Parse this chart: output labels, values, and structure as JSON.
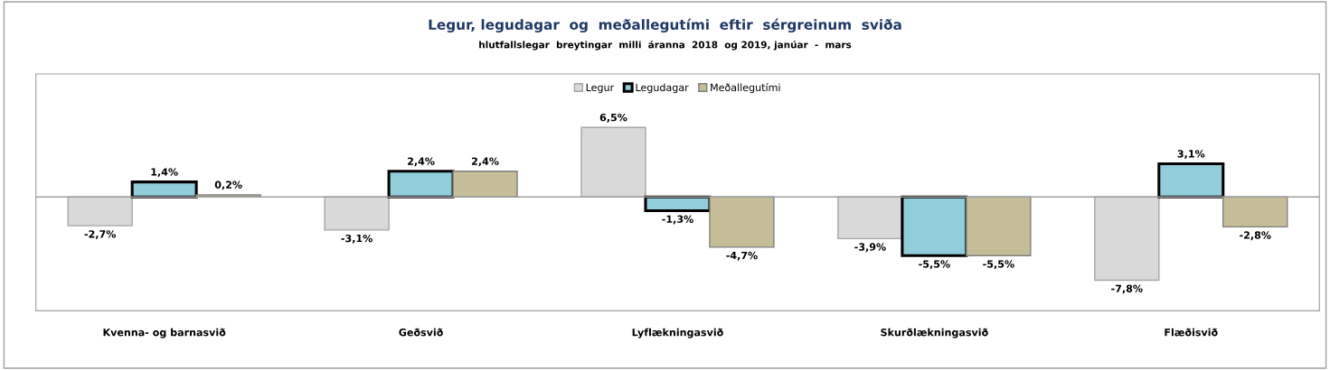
{
  "chart_data": {
    "type": "bar",
    "title": "Legur, legudagar  og  meðallegutími  eftir  sérgreinum  sviða",
    "subtitle": "hlutfallslegar  breytingar  milli  áranna  2018  og 2019, janúar  -  mars",
    "categories": [
      "Kvenna- og barnasvið",
      "Geðsvið",
      "Lyflækningasvið",
      "Skurðlækningasvið",
      "Flæðisvið"
    ],
    "series": [
      {
        "name": "Legur",
        "color": "#d9d9d9",
        "values": [
          -2.7,
          -3.1,
          6.5,
          -3.9,
          -7.8
        ],
        "value_labels": [
          "-2,7%",
          "-3,1%",
          "6,5%",
          "-3,9%",
          "-7,8%"
        ]
      },
      {
        "name": "Legudagar",
        "color": "#92cddc",
        "values": [
          1.4,
          2.4,
          -1.3,
          -5.5,
          3.1
        ],
        "value_labels": [
          "1,4%",
          "2,4%",
          "-1,3%",
          "-5,5%",
          "3,1%"
        ]
      },
      {
        "name": "Meðallegutími",
        "color": "#c4bd97",
        "values": [
          0.2,
          2.4,
          -4.7,
          -5.5,
          -2.8
        ],
        "value_labels": [
          "0,2%",
          "2,4%",
          "-4,7%",
          "-5,5%",
          "-2,8%"
        ]
      }
    ],
    "legend": "top",
    "grid": false,
    "tick_labels": "x"
  }
}
